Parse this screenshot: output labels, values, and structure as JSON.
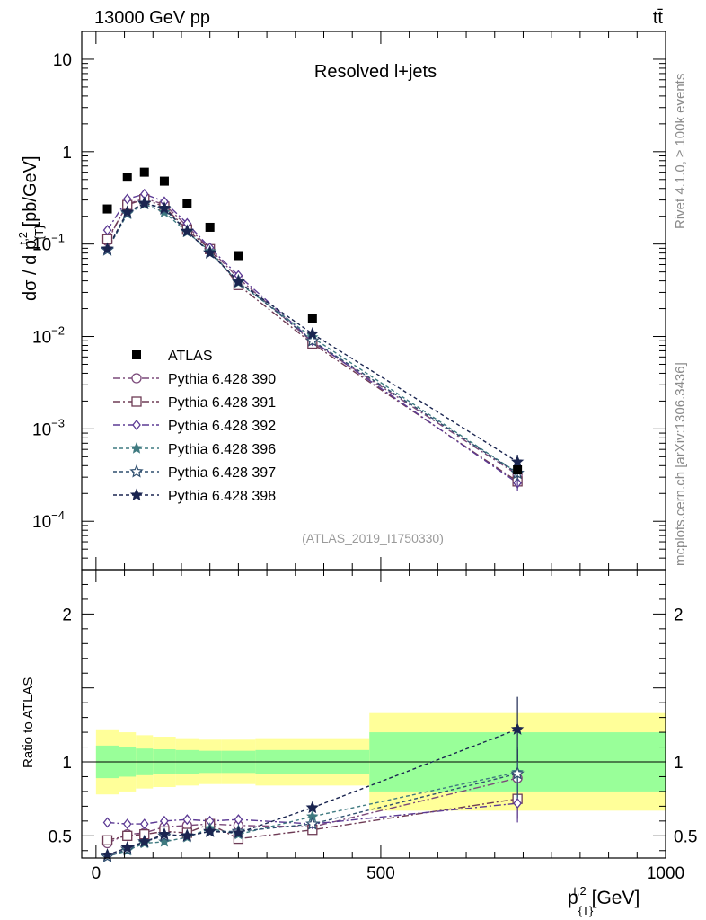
{
  "header": {
    "energy": "13000 GeV pp",
    "process": "tt̄"
  },
  "side_labels": {
    "rivet": "Rivet 4.1.0, ≥ 100k events",
    "mcplots": "mcplots.cern.ch [arXiv:1306.3436]"
  },
  "chart_data": {
    "type": "scatter",
    "title": "Resolved l+jets",
    "analysis_id": "(ATLAS_2019_I1750330)",
    "xlabel": "p_{T}^{t,2} [GeV]",
    "ylabel": "dσ / d p_{T}^{t,2} [pb/GeV]",
    "ratio_ylabel": "Ratio to ATLAS",
    "x_range": [
      -25,
      1000
    ],
    "x_ticks": [
      0,
      500,
      1000
    ],
    "y_scale": "log",
    "y_range": [
      3e-05,
      20
    ],
    "y_ticks": [
      "10^{-4}",
      "10^{-3}",
      "10^{-2}",
      "10^{-1}",
      "1",
      "10"
    ],
    "ratio_range": [
      0.35,
      2.3
    ],
    "ratio_ticks": [
      0.5,
      1,
      2
    ],
    "legend_position": "left-middle",
    "x": [
      20,
      55,
      85,
      120,
      160,
      200,
      250,
      380,
      740
    ],
    "bin_edges": [
      0,
      40,
      70,
      100,
      140,
      180,
      220,
      280,
      480,
      1000
    ],
    "atlas": {
      "name": "ATLAS",
      "values": [
        0.24,
        0.53,
        0.6,
        0.48,
        0.275,
        0.152,
        0.075,
        0.0155,
        0.00036
      ]
    },
    "band_inner": [
      0.11,
      0.1,
      0.09,
      0.085,
      0.08,
      0.075,
      0.075,
      0.08,
      0.2,
      0.28
    ],
    "band_outer": [
      0.22,
      0.2,
      0.18,
      0.17,
      0.16,
      0.15,
      0.15,
      0.16,
      0.33,
      0.4
    ],
    "series": [
      {
        "name": "Pythia 6.428 390",
        "color": "#7b4a7a",
        "dash": "8 3 2 3",
        "marker": "circle-open",
        "ratio": [
          0.45,
          0.51,
          0.52,
          0.56,
          0.57,
          0.58,
          0.57,
          0.56,
          0.89
        ]
      },
      {
        "name": "Pythia 6.428 391",
        "color": "#6e3b55",
        "dash": "8 3 2 3",
        "marker": "square-open",
        "ratio": [
          0.47,
          0.5,
          0.51,
          0.53,
          0.52,
          0.58,
          0.48,
          0.54,
          0.75
        ]
      },
      {
        "name": "Pythia 6.428 392",
        "color": "#5c3a94",
        "dash": "8 3 2 3",
        "marker": "diamond-open",
        "ratio": [
          0.59,
          0.58,
          0.58,
          0.6,
          0.61,
          0.6,
          0.61,
          0.58,
          0.72
        ]
      },
      {
        "name": "Pythia 6.428 396",
        "color": "#3f7a80",
        "dash": "4 3",
        "marker": "star-filled",
        "ratio": [
          0.36,
          0.4,
          0.45,
          0.46,
          0.49,
          0.55,
          0.51,
          0.63,
          0.93
        ]
      },
      {
        "name": "Pythia 6.428 397",
        "color": "#2f4f6f",
        "dash": "4 3",
        "marker": "star-open",
        "ratio": [
          0.36,
          0.41,
          0.46,
          0.5,
          0.5,
          0.53,
          0.53,
          0.58,
          0.92
        ]
      },
      {
        "name": "Pythia 6.428 398",
        "color": "#1a2550",
        "dash": "4 3",
        "marker": "triangle-down-filled",
        "ratio": [
          0.37,
          0.42,
          0.46,
          0.51,
          0.5,
          0.53,
          0.52,
          0.69,
          1.22
        ]
      }
    ]
  }
}
